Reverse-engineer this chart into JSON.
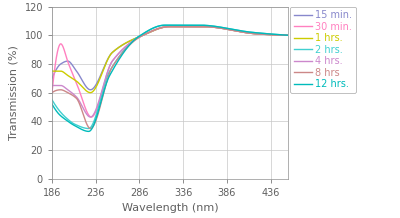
{
  "xlabel": "Wavelength (nm)",
  "ylabel": "Transmission (%)",
  "xlim": [
    186,
    456
  ],
  "ylim": [
    0,
    120
  ],
  "xticks": [
    186,
    236,
    286,
    336,
    386,
    436
  ],
  "yticks": [
    0,
    20,
    40,
    60,
    80,
    100,
    120
  ],
  "series": [
    {
      "label": "15 min.",
      "color": "#8888cc",
      "lw": 1.0,
      "knot_x": [
        186,
        196,
        204,
        214,
        230,
        255,
        290,
        320,
        360,
        420,
        456
      ],
      "knot_y": [
        70,
        80,
        82,
        75,
        62,
        88,
        100,
        106,
        106,
        101,
        100
      ]
    },
    {
      "label": "30 min.",
      "color": "#ff80c0",
      "lw": 1.0,
      "knot_x": [
        186,
        196,
        205,
        215,
        231,
        255,
        290,
        320,
        360,
        420,
        456
      ],
      "knot_y": [
        60,
        94,
        80,
        65,
        43,
        82,
        100,
        106,
        106,
        101,
        100
      ]
    },
    {
      "label": "1 hrs.",
      "color": "#cccc00",
      "lw": 1.0,
      "knot_x": [
        186,
        196,
        204,
        214,
        230,
        255,
        290,
        320,
        360,
        420,
        456
      ],
      "knot_y": [
        75,
        75,
        72,
        68,
        60,
        88,
        100,
        106,
        106,
        101,
        100
      ]
    },
    {
      "label": "2 hrs.",
      "color": "#40d0d0",
      "lw": 1.0,
      "knot_x": [
        186,
        195,
        203,
        212,
        228,
        252,
        285,
        315,
        355,
        415,
        456
      ],
      "knot_y": [
        55,
        47,
        42,
        38,
        35,
        75,
        99,
        107,
        107,
        102,
        100
      ]
    },
    {
      "label": "4 hrs.",
      "color": "#cc88cc",
      "lw": 1.0,
      "knot_x": [
        186,
        196,
        204,
        214,
        230,
        255,
        290,
        320,
        360,
        420,
        456
      ],
      "knot_y": [
        65,
        65,
        62,
        57,
        43,
        82,
        100,
        106,
        106,
        101,
        100
      ]
    },
    {
      "label": "8 hrs",
      "color": "#cc8888",
      "lw": 1.0,
      "knot_x": [
        186,
        196,
        204,
        214,
        230,
        255,
        290,
        320,
        360,
        420,
        456
      ],
      "knot_y": [
        60,
        62,
        60,
        56,
        35,
        78,
        100,
        106,
        106,
        101,
        100
      ]
    },
    {
      "label": "12 hrs.",
      "color": "#00bbbb",
      "lw": 1.0,
      "knot_x": [
        186,
        194,
        202,
        212,
        228,
        252,
        285,
        315,
        355,
        415,
        456
      ],
      "knot_y": [
        52,
        45,
        41,
        37,
        33,
        72,
        99,
        107,
        107,
        102,
        100
      ]
    }
  ],
  "legend_fontsize": 7,
  "tick_fontsize": 7,
  "label_fontsize": 8,
  "tick_color": "#606060",
  "grid_color": "#c8c8c8",
  "spine_color": "#909090",
  "bg_color": "#ffffff",
  "fig_width": 4.0,
  "fig_height": 2.18,
  "dpi": 100
}
